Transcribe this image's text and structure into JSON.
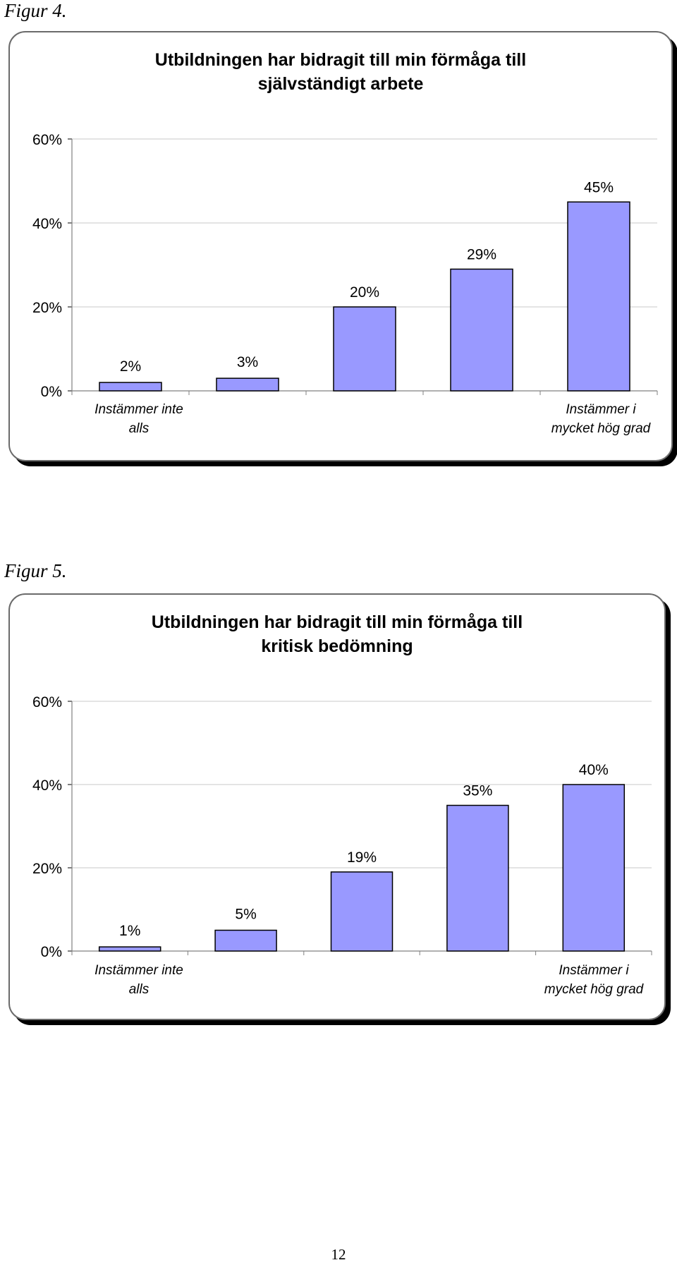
{
  "figures": [
    {
      "label": "Figur 4."
    },
    {
      "label": "Figur 5."
    }
  ],
  "chart_data": [
    {
      "type": "bar",
      "title": "Utbildningen har bidragit till min förmåga till självständigt arbete",
      "title_lines": [
        "Utbildningen har bidragit till min förmåga till",
        "självständigt arbete"
      ],
      "categories": [
        "Instämmer inte alls",
        "",
        "",
        "",
        "Instämmer i mycket hög grad"
      ],
      "category_lines": [
        [
          "Instämmer inte",
          "alls"
        ],
        [],
        [],
        [],
        [
          "Instämmer i",
          "mycket hög grad"
        ]
      ],
      "values": [
        2,
        3,
        20,
        29,
        45
      ],
      "value_labels": [
        "2%",
        "3%",
        "20%",
        "29%",
        "45%"
      ],
      "y_ticks": [
        "0%",
        "20%",
        "40%",
        "60%"
      ],
      "ylim": [
        0,
        60
      ],
      "bar_color": "#9999ff",
      "xlabel": "",
      "ylabel": "",
      "grid": true,
      "legend": false
    },
    {
      "type": "bar",
      "title": "Utbildningen har bidragit till min förmåga till kritisk bedömning",
      "title_lines": [
        "Utbildningen har bidragit till min förmåga till",
        "kritisk bedömning"
      ],
      "categories": [
        "Instämmer inte alls",
        "",
        "",
        "",
        "Instämmer i mycket hög grad"
      ],
      "category_lines": [
        [
          "Instämmer inte",
          "alls"
        ],
        [],
        [],
        [],
        [
          "Instämmer i",
          "mycket hög grad"
        ]
      ],
      "values": [
        1,
        5,
        19,
        35,
        40
      ],
      "value_labels": [
        "1%",
        "5%",
        "19%",
        "35%",
        "40%"
      ],
      "y_ticks": [
        "0%",
        "20%",
        "40%",
        "60%"
      ],
      "ylim": [
        0,
        60
      ],
      "bar_color": "#9999ff",
      "xlabel": "",
      "ylabel": "",
      "grid": true,
      "legend": false
    }
  ],
  "page_number": "12"
}
